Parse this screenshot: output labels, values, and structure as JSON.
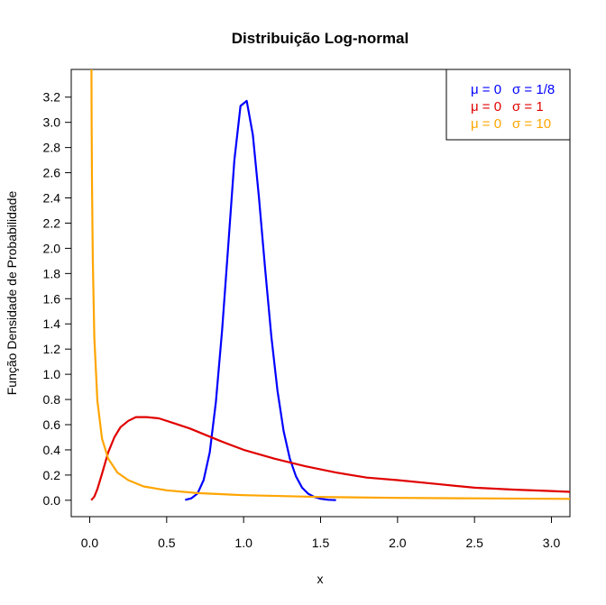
{
  "chart_data": {
    "type": "line",
    "title": "Distribuição Log-normal",
    "xlabel": "x",
    "ylabel": "Função Densidade de Probabilidade",
    "xlim": [
      -0.12,
      3.12
    ],
    "ylim": [
      -0.13,
      3.42
    ],
    "x_ticks": [
      0.0,
      0.5,
      1.0,
      1.5,
      2.0,
      2.5,
      3.0
    ],
    "x_tick_labels": [
      "0.0",
      "0.5",
      "1.0",
      "1.5",
      "2.0",
      "2.5",
      "3.0"
    ],
    "y_ticks": [
      0.0,
      0.2,
      0.4,
      0.6,
      0.8,
      1.0,
      1.2,
      1.4,
      1.6,
      1.8,
      2.0,
      2.2,
      2.4,
      2.6,
      2.8,
      3.0,
      3.2
    ],
    "y_tick_labels": [
      "0.0",
      "0.2",
      "0.4",
      "0.6",
      "0.8",
      "1.0",
      "1.2",
      "1.4",
      "1.6",
      "1.8",
      "2.0",
      "2.2",
      "2.4",
      "2.6",
      "2.8",
      "3.0",
      "3.2"
    ],
    "grid": false,
    "legend_position": "top-right",
    "series": [
      {
        "legend_mu": "μ = 0",
        "legend_sigma": "σ = 1/8",
        "color": "#0000ff",
        "x": [
          0.62,
          0.66,
          0.7,
          0.74,
          0.78,
          0.82,
          0.86,
          0.9,
          0.94,
          0.98,
          1.02,
          1.06,
          1.1,
          1.14,
          1.18,
          1.22,
          1.26,
          1.3,
          1.34,
          1.38,
          1.42,
          1.46,
          1.5,
          1.55,
          1.6
        ],
        "y": [
          0.003,
          0.015,
          0.053,
          0.16,
          0.38,
          0.78,
          1.35,
          2.02,
          2.7,
          3.13,
          3.17,
          2.9,
          2.4,
          1.83,
          1.3,
          0.87,
          0.55,
          0.33,
          0.19,
          0.1,
          0.052,
          0.026,
          0.012,
          0.004,
          0.001
        ]
      },
      {
        "legend_mu": "μ = 0",
        "legend_sigma": "σ = 1",
        "color": "#e00000",
        "x": [
          0.01,
          0.03,
          0.05,
          0.08,
          0.12,
          0.16,
          0.2,
          0.25,
          0.3,
          0.37,
          0.45,
          0.55,
          0.65,
          0.75,
          0.85,
          1.0,
          1.2,
          1.4,
          1.6,
          1.8,
          2.0,
          2.25,
          2.5,
          2.75,
          3.0,
          3.12
        ],
        "y": [
          0.0008,
          0.029,
          0.089,
          0.21,
          0.38,
          0.5,
          0.58,
          0.63,
          0.66,
          0.66,
          0.65,
          0.61,
          0.57,
          0.52,
          0.47,
          0.4,
          0.33,
          0.27,
          0.22,
          0.18,
          0.16,
          0.13,
          0.1,
          0.085,
          0.073,
          0.067
        ]
      },
      {
        "legend_mu": "μ = 0",
        "legend_sigma": "σ = 10",
        "color": "#ffa500",
        "x": [
          0.011,
          0.0125,
          0.015,
          0.02,
          0.03,
          0.05,
          0.08,
          0.12,
          0.18,
          0.25,
          0.35,
          0.5,
          0.7,
          1.0,
          1.5,
          2.0,
          2.5,
          3.0,
          3.12
        ],
        "y": [
          3.43,
          3.02,
          2.53,
          1.92,
          1.29,
          0.79,
          0.49,
          0.33,
          0.22,
          0.16,
          0.11,
          0.079,
          0.057,
          0.04,
          0.026,
          0.019,
          0.015,
          0.012,
          0.011
        ]
      }
    ]
  }
}
